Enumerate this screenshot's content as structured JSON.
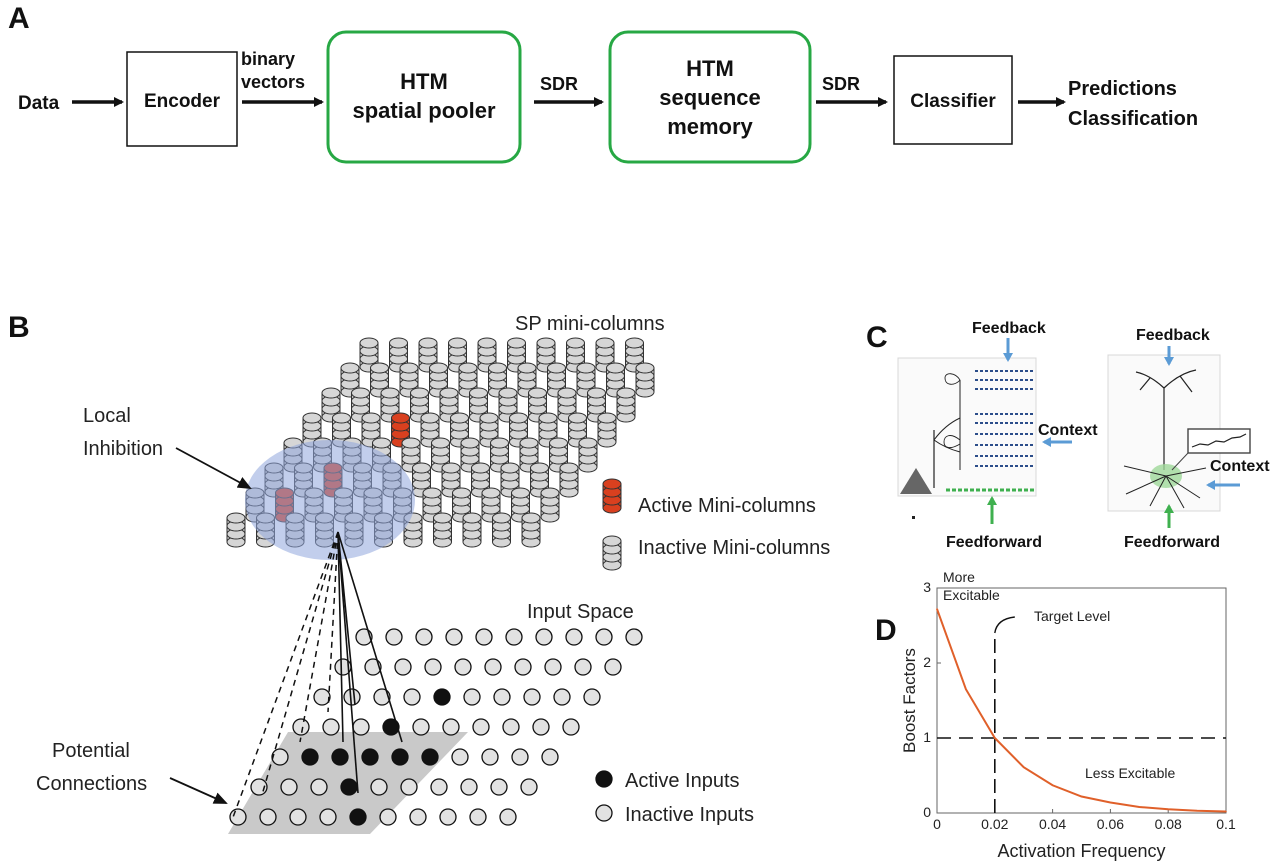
{
  "panel_a": {
    "label": "A",
    "data_label": "Data",
    "encoder": "Encoder",
    "binary_vectors": [
      "binary",
      "vectors"
    ],
    "spatial_pooler": [
      "HTM",
      "spatial pooler"
    ],
    "sdr_1": "SDR",
    "sequence_memory": [
      "HTM",
      "sequence",
      "memory"
    ],
    "sdr_2": "SDR",
    "classifier": "Classifier",
    "outputs": [
      "Predictions",
      "Classification"
    ],
    "colors": {
      "htm_border": "#27a844",
      "box_border": "#111111"
    }
  },
  "panel_b": {
    "label": "B",
    "sp_title": "SP mini-columns",
    "local_inhibition": [
      "Local",
      "Inhibition"
    ],
    "input_space": "Input Space",
    "potential_connections": [
      "Potential",
      "Connections"
    ],
    "legend": {
      "active_columns": "Active Mini-columns",
      "inactive_columns": "Inactive Mini-columns",
      "active_inputs": "Active Inputs",
      "inactive_inputs": "Inactive Inputs"
    },
    "colors": {
      "active_column": "#d9401f",
      "inactive_column": "#d6d6d6",
      "inhibition": "#8fa6dc",
      "active_input": "#111111",
      "inactive_input": "#e2e2e2"
    }
  },
  "panel_c": {
    "label": "C",
    "left": {
      "feedback": "Feedback",
      "context": "Context",
      "feedforward": "Feedforward"
    },
    "right": {
      "feedback": "Feedback",
      "context": "Context",
      "feedforward": "Feedforward"
    },
    "colors": {
      "arrow_blue": "#5b9bd5",
      "arrow_green": "#3fb04f"
    }
  },
  "panel_d": {
    "label": "D"
  },
  "chart_data": {
    "type": "line",
    "title": "",
    "xlabel": "Activation Frequency",
    "ylabel": "Boost Factors",
    "xlim": [
      0,
      0.1
    ],
    "ylim": [
      0,
      3
    ],
    "x_ticks": [
      "0",
      "0.02",
      "0.04",
      "0.06",
      "0.08",
      "0.1"
    ],
    "y_ticks": [
      "0",
      "1",
      "2",
      "3"
    ],
    "series": [
      {
        "color": "#e0602a",
        "x": [
          0,
          0.01,
          0.02,
          0.03,
          0.04,
          0.05,
          0.06,
          0.07,
          0.08,
          0.09,
          0.1
        ],
        "y": [
          2.72,
          1.65,
          1.0,
          0.61,
          0.37,
          0.22,
          0.14,
          0.08,
          0.05,
          0.03,
          0.02
        ]
      }
    ],
    "reference_lines": {
      "target_x": 0.02,
      "baseline_y": 1
    },
    "annotations": {
      "more_excitable": [
        "More",
        "Excitable"
      ],
      "target_level": "Target Level",
      "less_excitable": "Less Excitable"
    },
    "grid": false
  }
}
